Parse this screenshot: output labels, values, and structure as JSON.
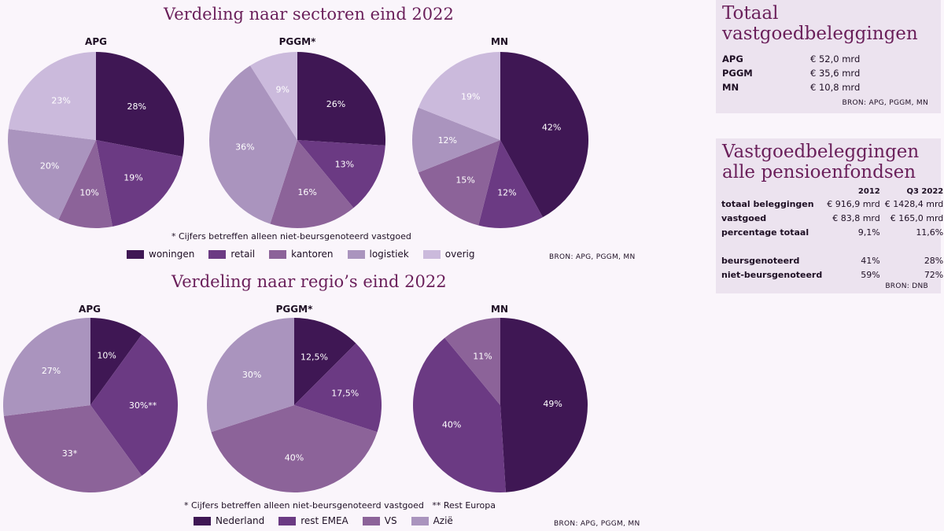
{
  "sectors": {
    "title": "Verdeling naar sectoren eind 2022",
    "footnote": "* Cijfers betreffen alleen niet-beursgenoteerd vastgoed",
    "source": "BRON: APG, PGGM, MN",
    "legend": [
      {
        "label": "woningen",
        "color": "#3f1754"
      },
      {
        "label": "retail",
        "color": "#6b3a83"
      },
      {
        "label": "kantoren",
        "color": "#8c6399"
      },
      {
        "label": "logistiek",
        "color": "#aa94be"
      },
      {
        "label": "overig",
        "color": "#cbbadc"
      }
    ]
  },
  "regions": {
    "title": "Verdeling naar regio’s eind 2022",
    "footnote": "* Cijfers betreffen alleen niet-beursgenoteerd vastgoed   ** Rest Europa",
    "source": "BRON: APG, PGGM, MN",
    "legend": [
      {
        "label": "Nederland",
        "color": "#3f1754"
      },
      {
        "label": "rest EMEA",
        "color": "#6b3a83"
      },
      {
        "label": "VS",
        "color": "#8c6399"
      },
      {
        "label": "Azië",
        "color": "#aa94be"
      }
    ]
  },
  "chart_data": [
    {
      "type": "pie",
      "name": "APG",
      "group": "sectors",
      "slices": [
        {
          "label": "woningen",
          "value": 28,
          "text": "28%"
        },
        {
          "label": "retail",
          "value": 19,
          "text": "19%"
        },
        {
          "label": "kantoren",
          "value": 10,
          "text": "10%"
        },
        {
          "label": "logistiek",
          "value": 20,
          "text": "20%"
        },
        {
          "label": "overig",
          "value": 23,
          "text": "23%"
        }
      ]
    },
    {
      "type": "pie",
      "name": "PGGM*",
      "group": "sectors",
      "slices": [
        {
          "label": "woningen",
          "value": 26,
          "text": "26%"
        },
        {
          "label": "retail",
          "value": 13,
          "text": "13%"
        },
        {
          "label": "kantoren",
          "value": 16,
          "text": "16%"
        },
        {
          "label": "logistiek",
          "value": 36,
          "text": "36%"
        },
        {
          "label": "overig",
          "value": 9,
          "text": "9%"
        }
      ]
    },
    {
      "type": "pie",
      "name": "MN",
      "group": "sectors",
      "slices": [
        {
          "label": "woningen",
          "value": 42,
          "text": "42%"
        },
        {
          "label": "retail",
          "value": 12,
          "text": "12%"
        },
        {
          "label": "kantoren",
          "value": 15,
          "text": "15%"
        },
        {
          "label": "logistiek",
          "value": 12,
          "text": "12%"
        },
        {
          "label": "overig",
          "value": 19,
          "text": "19%"
        }
      ]
    },
    {
      "type": "pie",
      "name": "APG",
      "group": "regions",
      "slices": [
        {
          "label": "Nederland",
          "value": 10,
          "text": "10%"
        },
        {
          "label": "rest EMEA",
          "value": 30,
          "text": "30%**"
        },
        {
          "label": "VS",
          "value": 33,
          "text": "33*"
        },
        {
          "label": "Azië",
          "value": 27,
          "text": "27%"
        }
      ]
    },
    {
      "type": "pie",
      "name": "PGGM*",
      "group": "regions",
      "slices": [
        {
          "label": "Nederland",
          "value": 12.5,
          "text": "12,5%"
        },
        {
          "label": "rest EMEA",
          "value": 17.5,
          "text": "17,5%"
        },
        {
          "label": "VS",
          "value": 40,
          "text": "40%"
        },
        {
          "label": "Azië",
          "value": 30,
          "text": "30%"
        }
      ]
    },
    {
      "type": "pie",
      "name": "MN",
      "group": "regions",
      "slices": [
        {
          "label": "Nederland",
          "value": 49,
          "text": "49%"
        },
        {
          "label": "rest EMEA",
          "value": 40,
          "text": "40%"
        },
        {
          "label": "VS",
          "value": 11,
          "text": "11%"
        }
      ]
    }
  ],
  "totaal": {
    "title": "Totaal vastgoedbeleggingen",
    "rows": [
      {
        "k": "APG",
        "v": "€ 52,0 mrd"
      },
      {
        "k": "PGGM",
        "v": "€ 35,6 mrd"
      },
      {
        "k": "MN",
        "v": "€ 10,8 mrd"
      }
    ],
    "source": "BRON: APG, PGGM, MN"
  },
  "alle": {
    "title": "Vastgoedbeleggingen alle pensioenfondsen",
    "col1": "2012",
    "col2": "Q3 2022",
    "rows": [
      {
        "k": "totaal beleggingen",
        "a": "€ 916,9 mrd",
        "b": "€ 1428,4 mrd"
      },
      {
        "k": "vastgoed",
        "a": "€ 83,8 mrd",
        "b": "€ 165,0 mrd"
      },
      {
        "k": "percentage totaal",
        "a": "9,1%",
        "b": "11,6%"
      },
      {
        "k": "",
        "a": "",
        "b": ""
      },
      {
        "k": "beursgenoteerd",
        "a": "41%",
        "b": "28%"
      },
      {
        "k": "niet-beursgenoteerd",
        "a": "59%",
        "b": "72%"
      }
    ],
    "source": "BRON: DNB"
  }
}
